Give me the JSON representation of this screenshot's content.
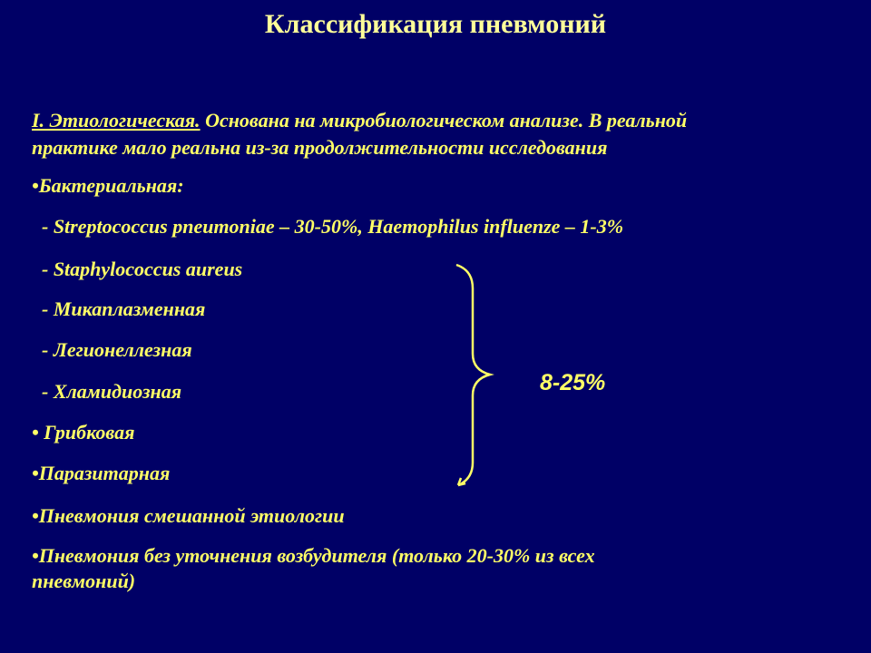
{
  "title": "Классификация пневмоний",
  "intro": {
    "heading": "I. Этиологическая.",
    "text_line1": " Основана на микробиологическом анализе. В реальной",
    "text_line2": "практике мало реальна из-за продолжительности исследования"
  },
  "items": [
    "•Бактериальная:",
    "  - Streptococcus pneumoniae – 30-50%, Haemophilus influenze – 1-3%",
    "  - Staphylococcus aureus",
    "  - Микаплазменная",
    "  - Легионеллезная",
    "  - Хламидиозная",
    "• Грибковая",
    "•Паразитарная",
    "•Пневмония смешанной этиологии"
  ],
  "last_item": {
    "line1": "•Пневмония без уточнения возбудителя (только 20-30% из всех",
    "line2": "пневмоний)"
  },
  "brace_label": "8-25%",
  "colors": {
    "background": "#000066",
    "text": "#ffff66",
    "title": "#ffff99"
  }
}
